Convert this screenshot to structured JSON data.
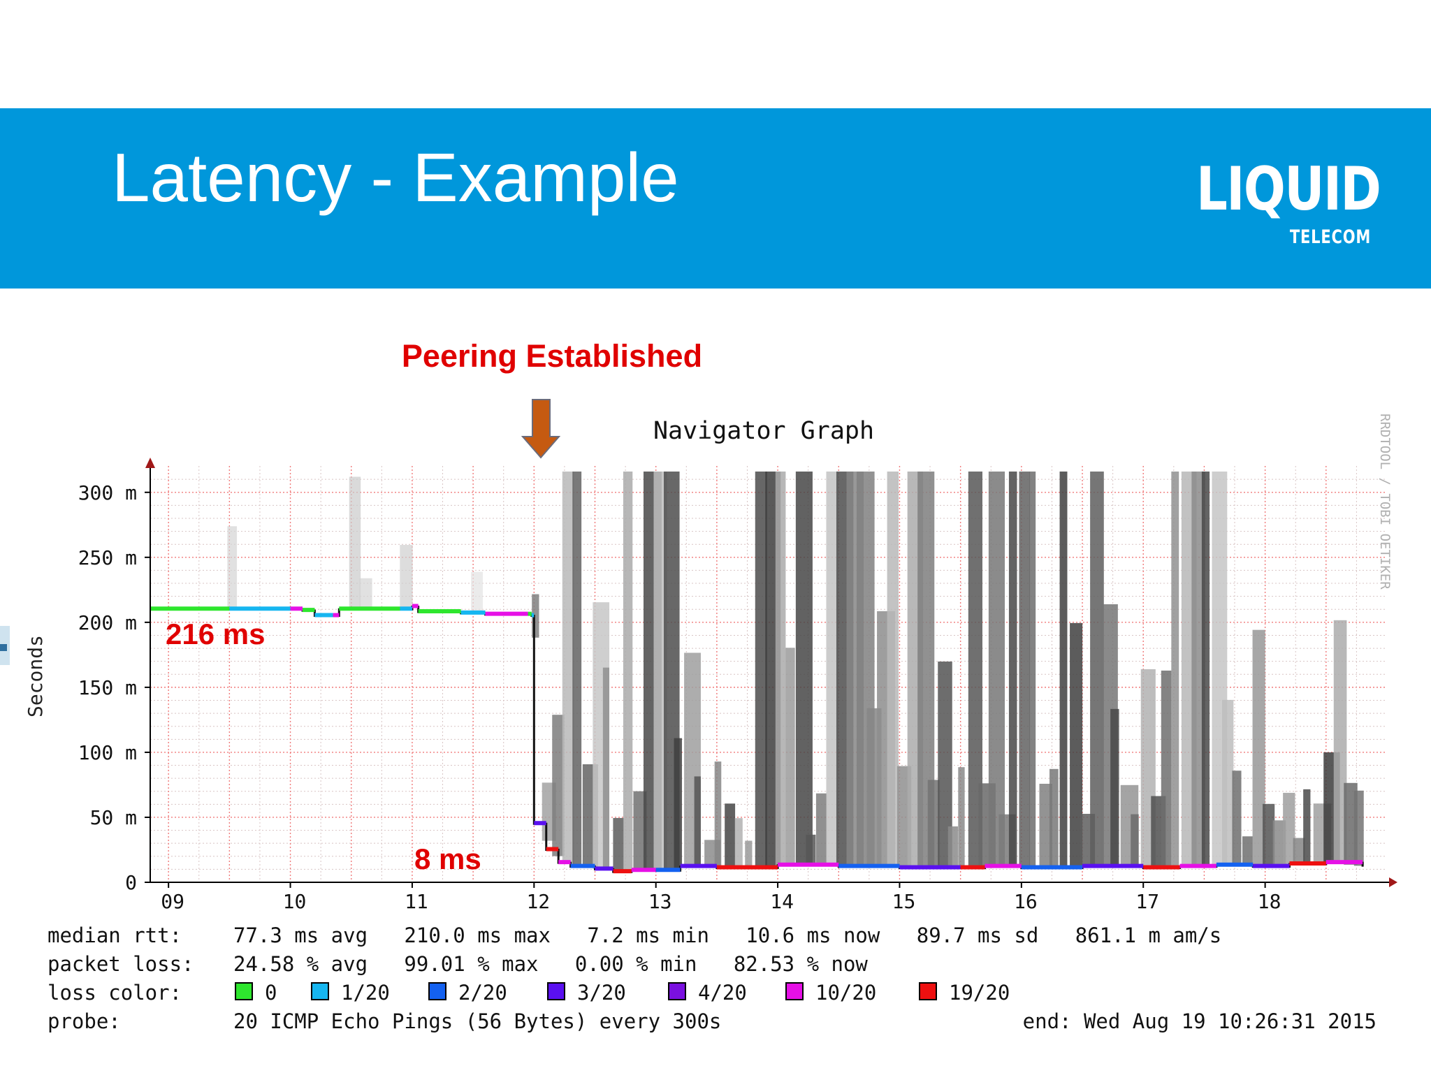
{
  "slide": {
    "title": "Latency - Example",
    "logo_main": "LIQUID",
    "logo_sub": "TELECOM"
  },
  "annotations": {
    "peering": "Peering Established",
    "before": "216 ms",
    "after": "8 ms",
    "arrow_color": "#c55a11",
    "label_color": "#e00000"
  },
  "chart_data": {
    "type": "line",
    "title": "Navigator Graph",
    "ylabel": "Seconds",
    "watermark": "RRDTOOL / TOBI OETIKER",
    "x_ticks": [
      "09",
      "10",
      "11",
      "12",
      "13",
      "14",
      "15",
      "16",
      "17",
      "18"
    ],
    "x_range_hours": [
      8.85,
      19.0
    ],
    "y_ticks": [
      "0",
      "50 m",
      "100 m",
      "150 m",
      "200 m",
      "250 m",
      "300 m"
    ],
    "y_tick_values": [
      0,
      50,
      100,
      150,
      200,
      250,
      300
    ],
    "y_unit": "ms",
    "ylim": [
      0,
      316
    ],
    "series": [
      {
        "hours": [
          8.85,
          9.5,
          10.0,
          10.1,
          10.2,
          10.35,
          10.4,
          10.9,
          11.0,
          11.05,
          11.4,
          11.6,
          11.95,
          11.98,
          12.0,
          12.1,
          12.2,
          12.3,
          12.5,
          12.65,
          12.8,
          13.0,
          13.2,
          13.5,
          14.0,
          14.5,
          15.0,
          15.5,
          15.7,
          16.0,
          16.5,
          17.0,
          17.3,
          17.6,
          17.9,
          18.2,
          18.5,
          18.8
        ],
        "median_ms": [
          210,
          210,
          210,
          209,
          205,
          205,
          210,
          210,
          212,
          208,
          207,
          206,
          206,
          205,
          45,
          25,
          15,
          12,
          10,
          8,
          9,
          9,
          12,
          11,
          13,
          12,
          11,
          11,
          12,
          11,
          12,
          11,
          12,
          13,
          12,
          14,
          15,
          12
        ]
      }
    ],
    "grid": true,
    "stats": [
      {
        "label": "median rtt:",
        "text": "77.3 ms avg   210.0 ms max   7.2 ms min   10.6 ms now   89.7 ms sd   861.1 m am/s"
      },
      {
        "label": "packet loss:",
        "text": "24.58 % avg   99.01 % max   0.00 % min   82.53 % now"
      }
    ],
    "loss_color_label": "loss color:",
    "loss_colors": [
      {
        "label": "0",
        "color": "#2ee62e"
      },
      {
        "label": "1/20",
        "color": "#16b6f0"
      },
      {
        "label": "2/20",
        "color": "#1461f0"
      },
      {
        "label": "3/20",
        "color": "#5a10f0"
      },
      {
        "label": "4/20",
        "color": "#7a10e0"
      },
      {
        "label": "10/20",
        "color": "#e610e6"
      },
      {
        "label": "19/20",
        "color": "#ee1010"
      }
    ],
    "probe_label": "probe:",
    "probe_text": "20 ICMP Echo Pings (56 Bytes) every 300s",
    "end_text": "end: Wed Aug 19 10:26:31 2015"
  }
}
